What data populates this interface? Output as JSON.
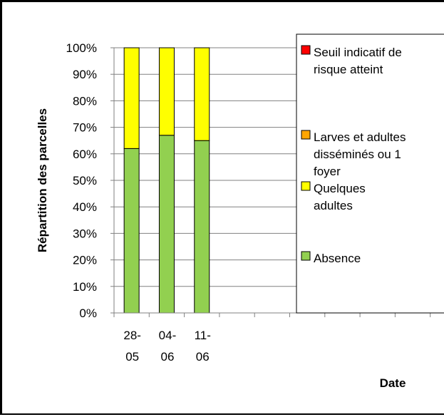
{
  "chart_data": {
    "type": "bar",
    "stacked": true,
    "categories": [
      [
        "28-",
        "05"
      ],
      [
        "04-",
        "06"
      ],
      [
        "11-",
        "06"
      ]
    ],
    "series": [
      {
        "name": "Absence",
        "values": [
          62,
          67,
          65
        ],
        "color": "#92D050"
      },
      {
        "name": "Quelques adultes",
        "values": [
          38,
          33,
          35
        ],
        "color": "#FFFF00"
      },
      {
        "name": "Larves et adultes disséminés ou 1 foyer",
        "values": [
          0,
          0,
          0
        ],
        "color": "#FFA500"
      },
      {
        "name": "Seuil indicatif de risque atteint",
        "values": [
          0,
          0,
          0
        ],
        "color": "#FF0000"
      }
    ],
    "legend_order": [
      {
        "color": "#FF0000",
        "lines": [
          "Seuil indicatif de",
          "risque atteint"
        ]
      },
      {
        "color": "#FFA500",
        "lines": [
          "Larves et adultes",
          "disséminés ou 1",
          "foyer"
        ]
      },
      {
        "color": "#FFFF00",
        "lines": [
          "Quelques",
          "adultes"
        ]
      },
      {
        "color": "#92D050",
        "lines": [
          "Absence"
        ]
      }
    ],
    "ylabel": "Répartition des parcelles",
    "xlabel": "Date",
    "ylim": [
      0,
      100
    ],
    "yticks": [
      "0%",
      "10%",
      "20%",
      "30%",
      "40%",
      "50%",
      "60%",
      "70%",
      "80%",
      "90%",
      "100%"
    ],
    "grid": true,
    "legend_position": "right"
  }
}
